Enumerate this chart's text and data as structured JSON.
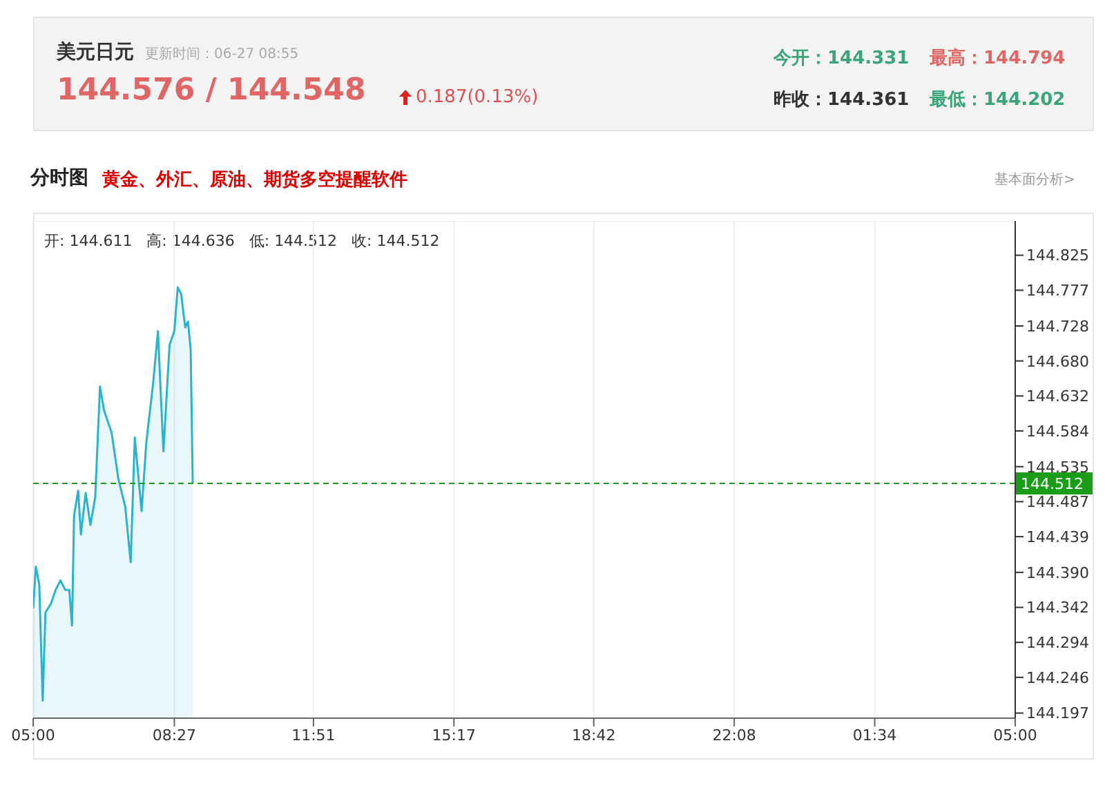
{
  "chart_data": {
    "type": "area",
    "title": "美元日元",
    "subtitle": "更新时间：06-27 08:55",
    "annotations": [
      "144.576 / 144.548",
      "0.187(0.13%)",
      "今开：144.331",
      "最高：144.794",
      "昨收：144.361",
      "最低：144.202",
      "分时图",
      "黄金、外汇、原油、期货多空提醒软件",
      "基本面分析>",
      "开: 144.611   高: 144.636   低: 144.512   收: 144.512"
    ],
    "series": [
      {
        "color": "#29b3cf",
        "x": [
          "--06-27T05:00",
          "--06-27T05:04",
          "--06-27T05:09",
          "--06-27T05:14",
          "--06-27T05:18",
          "--06-27T05:26",
          "--06-27T05:33",
          "--06-27T05:40",
          "--06-27T05:47",
          "--06-27T05:53",
          "--06-27T05:57",
          "--06-27T06:00",
          "--06-27T06:06",
          "--06-27T06:10",
          "--06-27T06:17",
          "--06-27T06:24",
          "--06-27T06:31",
          "--06-27T06:38",
          "--06-27T06:44",
          "--06-27T06:55",
          "--06-27T07:05",
          "--06-27T07:15",
          "--06-27T07:23",
          "--06-27T07:29",
          "--06-27T07:39",
          "--06-27T07:46",
          "--06-27T07:56",
          "--06-27T08:03",
          "--06-27T08:11",
          "--06-27T08:20",
          "--06-27T08:27",
          "--06-27T08:32",
          "--06-27T08:37",
          "--06-27T08:43",
          "--06-27T08:47",
          "--06-27T08:51",
          "--06-27T08:54"
        ],
        "values": [
          144.341,
          144.398,
          144.373,
          144.214,
          144.335,
          144.347,
          144.366,
          144.379,
          144.366,
          144.366,
          144.317,
          144.468,
          144.502,
          144.442,
          144.499,
          144.455,
          144.493,
          144.645,
          144.612,
          144.582,
          144.518,
          144.48,
          144.404,
          144.575,
          144.474,
          144.569,
          144.65,
          144.721,
          144.556,
          144.702,
          144.721,
          144.781,
          144.772,
          144.726,
          144.734,
          144.696,
          144.512
        ]
      }
    ],
    "xlim": [
      "--06-27T05:00",
      "--06-28T05:00"
    ],
    "xticks": [
      {
        "value": "--06-27T05:00",
        "label": "05:00"
      },
      {
        "value": "--06-27T08:27",
        "label": "08:27"
      },
      {
        "value": "--06-27T11:51",
        "label": "11:51"
      },
      {
        "value": "--06-27T15:17",
        "label": "15:17"
      },
      {
        "value": "--06-27T18:42",
        "label": "18:42"
      },
      {
        "value": "--06-27T22:08",
        "label": "22:08"
      },
      {
        "value": "--06-28T01:34",
        "label": "01:34"
      },
      {
        "value": "--06-28T05:00",
        "label": "05:00"
      }
    ],
    "ylim": [
      144.19,
      144.872
    ],
    "yticks": [
      144.197,
      144.246,
      144.294,
      144.342,
      {
        "value": 144.39,
        "label": "144.390"
      },
      144.439,
      144.487,
      144.535,
      144.584,
      144.632,
      {
        "value": 144.68,
        "label": "144.680"
      },
      144.728,
      144.777,
      144.825
    ],
    "ref_lines": [
      {
        "axis": "y",
        "value": 144.512,
        "label": "144.512",
        "color": "#1a9e1a",
        "line_style": "dashed"
      }
    ],
    "grid": true,
    "marker": "none",
    "line_style": "solid"
  }
}
